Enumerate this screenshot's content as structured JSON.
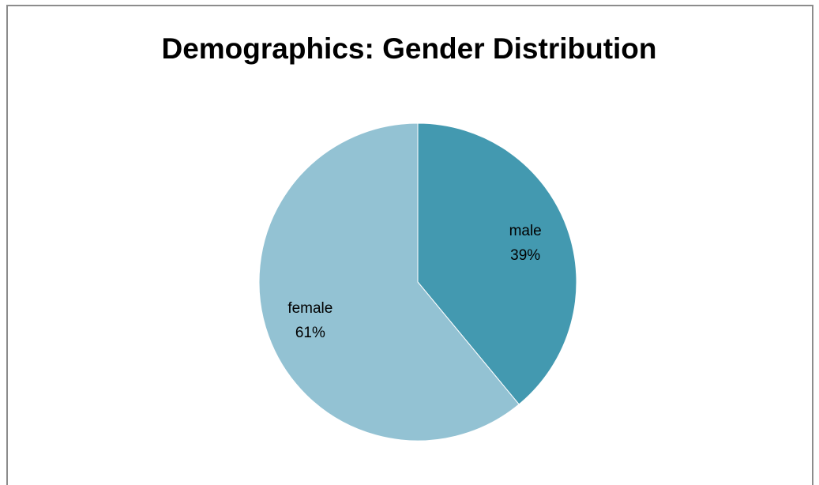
{
  "chart_data": {
    "type": "pie",
    "title": "Demographics: Gender Distribution",
    "categories": [
      "male",
      "female"
    ],
    "values": [
      39,
      61
    ],
    "value_labels": [
      "39%",
      "61%"
    ],
    "colors": [
      "#4399b0",
      "#93c2d3"
    ]
  }
}
